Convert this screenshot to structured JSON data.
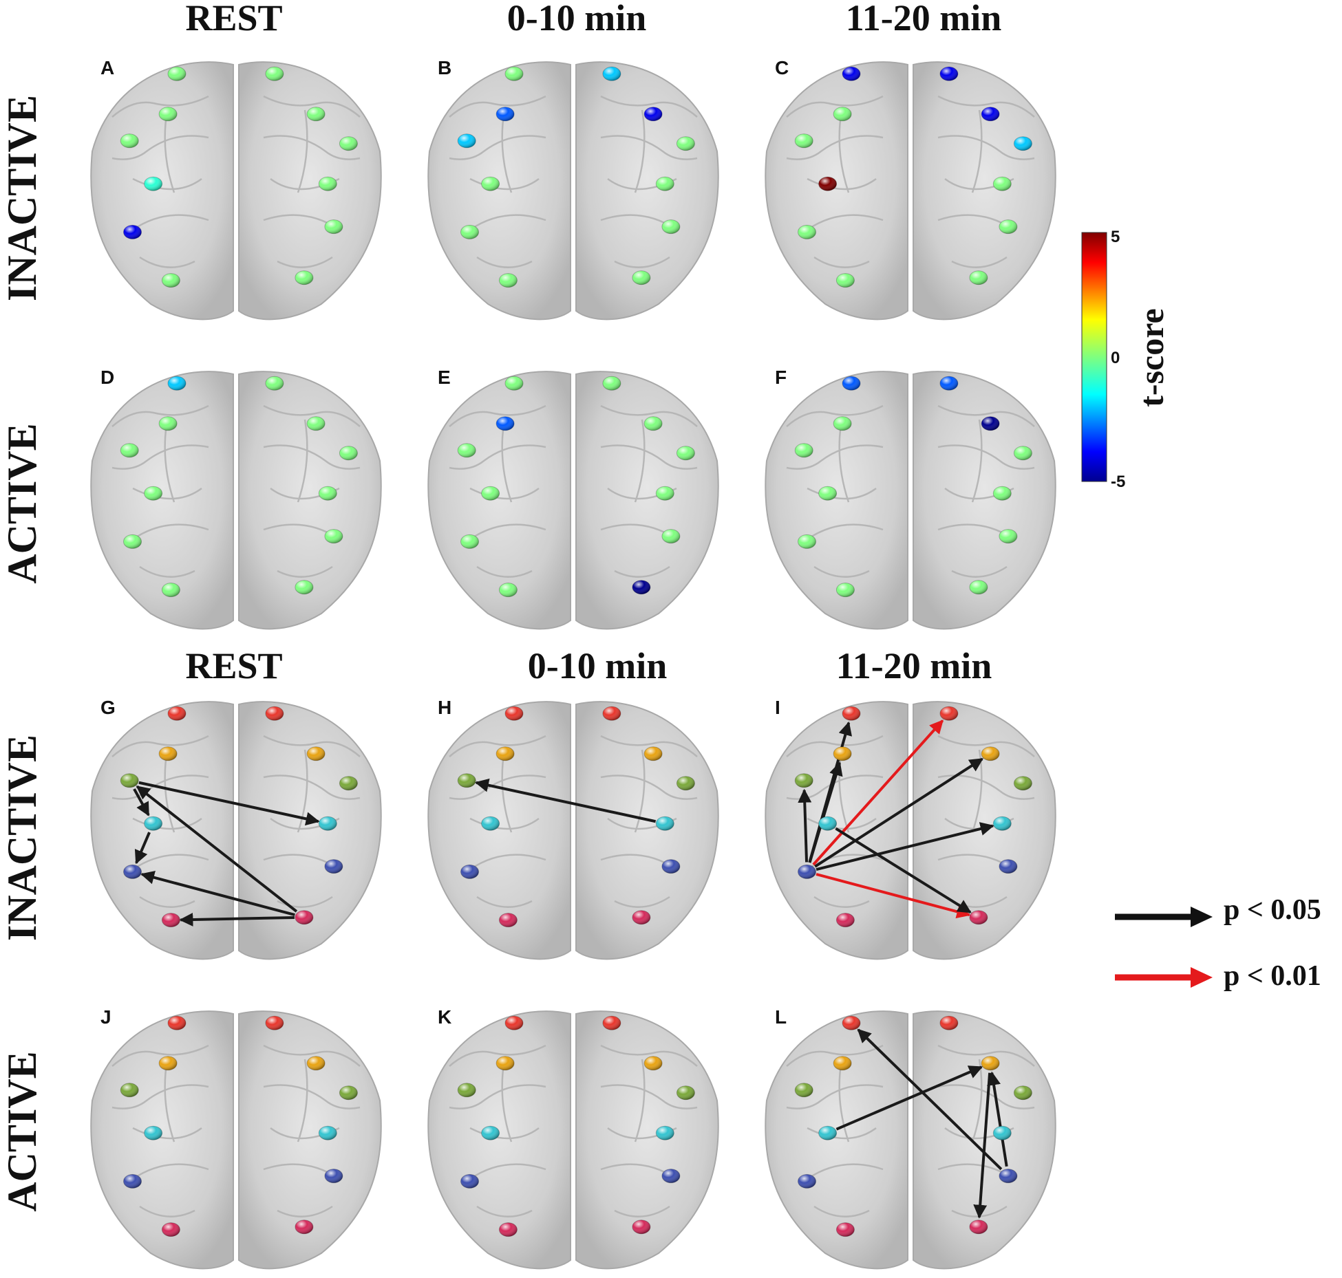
{
  "column_titles_top": [
    "REST",
    "0-10 min",
    "11-20 min"
  ],
  "column_titles_bottom": [
    "REST",
    "0-10 min",
    "11-20 min"
  ],
  "row_labels": [
    "INACTIVE",
    "ACTIVE",
    "INACTIVE",
    "ACTIVE"
  ],
  "panels": [
    {
      "letter": "A",
      "node_tscores": [
        0,
        0,
        0,
        0,
        0,
        0,
        -1,
        0,
        -4,
        0,
        0,
        0
      ]
    },
    {
      "letter": "B",
      "node_tscores": [
        0,
        -2,
        -3,
        -4,
        -2,
        0,
        0,
        0,
        0,
        0,
        0,
        0
      ]
    },
    {
      "letter": "C",
      "node_tscores": [
        -4,
        -4,
        0,
        -4,
        0,
        -2,
        5,
        0,
        0,
        0,
        0,
        0
      ]
    },
    {
      "letter": "D",
      "node_tscores": [
        -2,
        0,
        0,
        0,
        0,
        0,
        0,
        0,
        0,
        0,
        0,
        0
      ]
    },
    {
      "letter": "E",
      "node_tscores": [
        0,
        0,
        -3,
        0,
        0,
        0,
        0,
        0,
        0,
        0,
        0,
        -5
      ]
    },
    {
      "letter": "F",
      "node_tscores": [
        -3,
        -3,
        0,
        -5,
        0,
        0,
        0,
        0,
        0,
        0,
        0,
        0
      ]
    },
    {
      "letter": "G"
    },
    {
      "letter": "H"
    },
    {
      "letter": "I"
    },
    {
      "letter": "J"
    },
    {
      "letter": "K"
    },
    {
      "letter": "L"
    }
  ],
  "colorbar": {
    "title": "t-score",
    "ticks": [
      "5",
      "0",
      "-5"
    ],
    "min": -5,
    "max": 5
  },
  "region_colors": [
    "#e8362c",
    "#e8a312",
    "#7aa83a",
    "#33c4d0",
    "#3d4fb0",
    "#d42a5b"
  ],
  "connections": {
    "G": [
      {
        "from": "L3",
        "to": "R4",
        "p": "0.05"
      },
      {
        "from": "L3",
        "to": "L4",
        "p": "0.05"
      },
      {
        "from": "L4",
        "to": "L5",
        "p": "0.05"
      },
      {
        "from": "R6",
        "to": "L3",
        "p": "0.05"
      },
      {
        "from": "R6",
        "to": "L5",
        "p": "0.05"
      },
      {
        "from": "R6",
        "to": "L6",
        "p": "0.05"
      }
    ],
    "H": [
      {
        "from": "R4",
        "to": "L3",
        "p": "0.05"
      }
    ],
    "I": [
      {
        "from": "L5",
        "to": "L1",
        "p": "0.05"
      },
      {
        "from": "L5",
        "to": "L2",
        "p": "0.05"
      },
      {
        "from": "L5",
        "to": "L3",
        "p": "0.05"
      },
      {
        "from": "L5",
        "to": "R2",
        "p": "0.05"
      },
      {
        "from": "L5",
        "to": "R4",
        "p": "0.05"
      },
      {
        "from": "L5",
        "to": "R1",
        "p": "0.01"
      },
      {
        "from": "L5",
        "to": "R6",
        "p": "0.01"
      },
      {
        "from": "L4",
        "to": "R6",
        "p": "0.05"
      }
    ],
    "J": [],
    "K": [],
    "L": [
      {
        "from": "R5",
        "to": "L1",
        "p": "0.05"
      },
      {
        "from": "L4",
        "to": "R2",
        "p": "0.05"
      },
      {
        "from": "R5",
        "to": "R2",
        "p": "0.05"
      },
      {
        "from": "R2",
        "to": "R6",
        "p": "0.05"
      }
    ]
  },
  "legend": [
    {
      "label": "p < 0.05",
      "color": "#111111"
    },
    {
      "label": "p < 0.01",
      "color": "#e41a1c"
    }
  ]
}
